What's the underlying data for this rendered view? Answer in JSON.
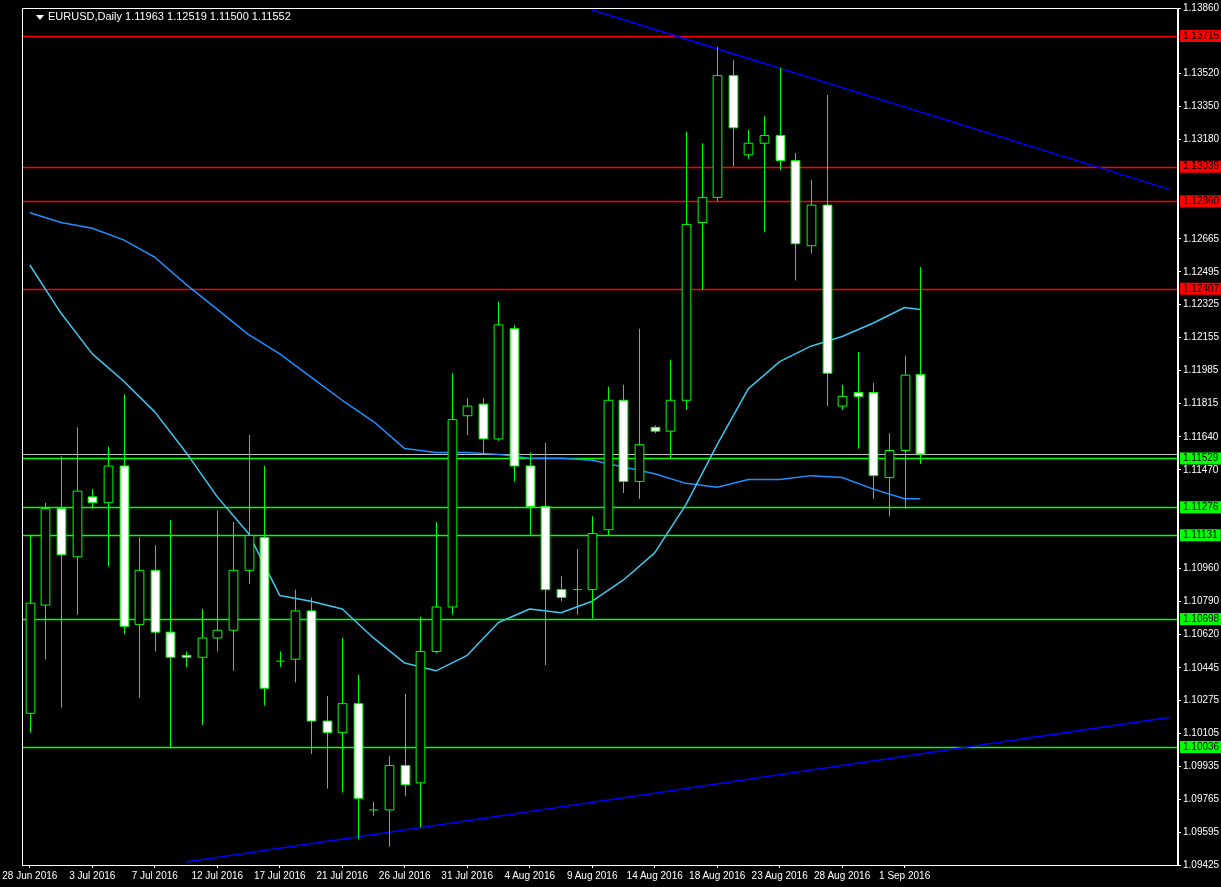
{
  "chart_data": {
    "type": "candlestick",
    "title": "EURUSD,Daily 1.11963 1.12519 1.11500 1.11552",
    "categories": [
      "28 Jun 2016",
      null,
      null,
      null,
      "3 Jul 2016",
      null,
      null,
      null,
      "7 Jul 2016",
      null,
      null,
      null,
      "12 Jul 2016",
      null,
      null,
      null,
      "17 Jul 2016",
      null,
      null,
      null,
      "21 Jul 2016",
      null,
      null,
      null,
      "26 Jul 2016",
      null,
      null,
      null,
      "31 Jul 2016",
      null,
      null,
      null,
      "4 Aug 2016",
      null,
      null,
      null,
      "9 Aug 2016",
      null,
      null,
      null,
      "14 Aug 2016",
      null,
      null,
      null,
      "18 Aug 2016",
      null,
      null,
      null,
      "23 Aug 2016",
      null,
      null,
      null,
      "28 Aug 2016",
      null,
      null,
      null,
      "1 Sep 2016",
      null,
      null,
      null,
      null,
      null,
      null,
      null,
      null,
      null,
      null,
      null,
      null,
      null,
      null,
      null,
      null,
      null
    ],
    "ohlc": [
      [
        1.1021,
        1.1113,
        1.1011,
        1.1078
      ],
      [
        1.1077,
        1.113,
        1.1049,
        1.1127
      ],
      [
        1.1127,
        1.1154,
        1.1024,
        1.1103
      ],
      [
        1.1102,
        1.1169,
        1.1072,
        1.1136
      ],
      [
        1.1133,
        1.1137,
        1.1127,
        1.113
      ],
      [
        1.113,
        1.1159,
        1.1097,
        1.1149
      ],
      [
        1.1149,
        1.1186,
        1.1062,
        1.1066
      ],
      [
        1.1067,
        1.1112,
        1.1029,
        1.1095
      ],
      [
        1.1095,
        1.1108,
        1.1053,
        1.1063
      ],
      [
        1.1063,
        1.1121,
        1.1003,
        1.105
      ],
      [
        1.1051,
        1.1053,
        1.1045,
        1.105
      ],
      [
        1.105,
        1.1075,
        1.1015,
        1.106
      ],
      [
        1.106,
        1.1126,
        1.1053,
        1.1064
      ],
      [
        1.1064,
        1.112,
        1.1043,
        1.1095
      ],
      [
        1.1095,
        1.1165,
        1.1088,
        1.1113
      ],
      [
        1.1112,
        1.1149,
        1.1025,
        1.1034
      ],
      [
        1.1048,
        1.1053,
        1.1045,
        1.1048
      ],
      [
        1.1049,
        1.1085,
        1.1037,
        1.1074
      ],
      [
        1.1074,
        1.1081,
        1.1,
        1.1017
      ],
      [
        1.1017,
        1.103,
        1.0982,
        1.1011
      ],
      [
        1.1011,
        1.106,
        1.098,
        1.1026
      ],
      [
        1.1026,
        1.1041,
        1.0956,
        1.0977
      ],
      [
        1.0971,
        1.0975,
        1.0968,
        1.0971
      ],
      [
        1.0971,
        1.0999,
        1.0952,
        1.0994
      ],
      [
        1.0994,
        1.1031,
        1.0978,
        1.0984
      ],
      [
        1.0985,
        1.1071,
        1.0962,
        1.1053
      ],
      [
        1.1053,
        1.112,
        1.1052,
        1.1076
      ],
      [
        1.1076,
        1.1197,
        1.1072,
        1.1173
      ],
      [
        1.1175,
        1.1184,
        1.1165,
        1.118
      ],
      [
        1.1181,
        1.1184,
        1.1155,
        1.1163
      ],
      [
        1.1163,
        1.1234,
        1.1162,
        1.1222
      ],
      [
        1.122,
        1.1222,
        1.1141,
        1.1149
      ],
      [
        1.1149,
        1.1156,
        1.1113,
        1.1128
      ],
      [
        1.1128,
        1.1161,
        1.1046,
        1.1085
      ],
      [
        1.1085,
        1.1092,
        1.1079,
        1.1081
      ],
      [
        1.1085,
        1.1106,
        1.1072,
        1.1085
      ],
      [
        1.1085,
        1.1123,
        1.107,
        1.1114
      ],
      [
        1.1116,
        1.119,
        1.1113,
        1.1183
      ],
      [
        1.1183,
        1.1191,
        1.1135,
        1.1141
      ],
      [
        1.1141,
        1.122,
        1.1132,
        1.116
      ],
      [
        1.1169,
        1.117,
        1.1166,
        1.1167
      ],
      [
        1.1167,
        1.1204,
        1.1153,
        1.1183
      ],
      [
        1.1183,
        1.1322,
        1.1178,
        1.1274
      ],
      [
        1.1275,
        1.1316,
        1.124,
        1.1288
      ],
      [
        1.1288,
        1.1366,
        1.1286,
        1.1351
      ],
      [
        1.1351,
        1.1359,
        1.1304,
        1.1324
      ],
      [
        1.131,
        1.1323,
        1.1308,
        1.1316
      ],
      [
        1.1316,
        1.133,
        1.127,
        1.132
      ],
      [
        1.132,
        1.1355,
        1.1302,
        1.1307
      ],
      [
        1.1307,
        1.1311,
        1.1245,
        1.1264
      ],
      [
        1.1263,
        1.1297,
        1.1259,
        1.1284
      ],
      [
        1.1284,
        1.1341,
        1.118,
        1.1197
      ],
      [
        1.118,
        1.1191,
        1.1178,
        1.1185
      ],
      [
        1.1187,
        1.1208,
        1.1158,
        1.1185
      ],
      [
        1.1187,
        1.1192,
        1.1132,
        1.1144
      ],
      [
        1.1143,
        1.1166,
        1.1123,
        1.1157
      ],
      [
        1.1157,
        1.1206,
        1.1127,
        1.1196
      ],
      [
        1.11963,
        1.12519,
        1.115,
        1.11552
      ],
      null,
      null,
      null,
      null,
      null,
      null,
      null,
      null,
      null,
      null,
      null,
      null,
      null,
      null,
      null,
      null
    ],
    "series": [
      {
        "type": "line",
        "color": "#3cc8f0",
        "values": [
          1.1253,
          null,
          1.1228,
          null,
          1.1207,
          null,
          1.1193,
          null,
          1.1177,
          null,
          1.1156,
          null,
          1.1133,
          null,
          1.1114,
          null,
          1.1082,
          null,
          1.1079,
          null,
          1.1075,
          null,
          1.106,
          null,
          1.1047,
          null,
          1.1043,
          null,
          1.1051,
          null,
          1.1068,
          null,
          1.1075,
          null,
          1.1073,
          null,
          1.1079,
          null,
          1.109,
          null,
          1.1104,
          null,
          1.1129,
          null,
          1.116,
          null,
          1.1189,
          null,
          1.1203,
          null,
          1.1211,
          null,
          1.1216,
          null,
          1.1223,
          null,
          1.1231,
          1.123,
          null,
          null,
          null,
          null,
          null,
          null,
          null,
          null,
          null,
          null,
          null,
          null,
          null,
          null,
          null,
          null
        ]
      },
      {
        "type": "line",
        "color": "#1e90ff",
        "values": [
          1.128,
          null,
          1.1275,
          null,
          1.1272,
          null,
          1.1266,
          null,
          1.1257,
          null,
          1.1243,
          null,
          1.123,
          null,
          1.1217,
          null,
          1.1207,
          null,
          1.1195,
          null,
          1.1183,
          null,
          1.1172,
          null,
          1.1158,
          null,
          1.1156,
          null,
          1.1156,
          null,
          1.1155,
          null,
          1.1153,
          null,
          1.1153,
          null,
          1.1152,
          null,
          null,
          null,
          1.1145,
          null,
          1.114,
          null,
          1.1138,
          null,
          1.1142,
          null,
          1.1142,
          null,
          1.1144,
          null,
          1.1143,
          null,
          1.1137,
          null,
          1.1132,
          1.1132,
          null,
          null,
          null,
          null,
          null,
          null,
          null,
          null,
          null,
          null,
          null,
          null,
          null,
          null,
          null,
          null
        ]
      },
      {
        "type": "line",
        "color": "#0000ff",
        "values": [
          null,
          null,
          null,
          null,
          null,
          null,
          null,
          null,
          null,
          null,
          null,
          null,
          null,
          null,
          null,
          null,
          null,
          null,
          null,
          null,
          null,
          null,
          null,
          null,
          null,
          null,
          null,
          null,
          null,
          null,
          null,
          null,
          null,
          null,
          null,
          null,
          1.1385,
          null,
          null,
          null,
          null,
          null,
          null,
          null,
          null,
          null,
          null,
          null,
          null,
          null,
          null,
          null,
          null,
          null,
          null,
          null,
          null,
          null,
          null,
          null,
          null,
          null,
          null,
          null,
          null,
          null,
          null,
          null,
          null,
          null,
          null,
          null,
          null,
          1.1292
        ]
      },
      {
        "type": "line",
        "color": "#0000ff",
        "values": [
          null,
          null,
          null,
          null,
          null,
          null,
          null,
          null,
          null,
          null,
          1.0944,
          null,
          null,
          null,
          null,
          null,
          null,
          null,
          null,
          null,
          null,
          null,
          null,
          null,
          null,
          null,
          null,
          null,
          null,
          null,
          null,
          null,
          null,
          null,
          null,
          null,
          null,
          null,
          null,
          null,
          null,
          null,
          null,
          null,
          null,
          null,
          null,
          null,
          null,
          null,
          null,
          null,
          null,
          null,
          null,
          null,
          null,
          null,
          null,
          null,
          null,
          null,
          null,
          null,
          null,
          null,
          null,
          null,
          null,
          null,
          null,
          null,
          null,
          1.1019
        ]
      }
    ],
    "ylim": [
      1.09425,
      1.1386
    ],
    "yticks": [
      {
        "value": 1.09425,
        "label": "1.09425"
      },
      {
        "value": 1.09595,
        "label": "1.09595"
      },
      {
        "value": 1.09765,
        "label": "1.09765"
      },
      {
        "value": 1.09935,
        "label": "1.09935"
      },
      {
        "value": 1.10105,
        "label": "1.10105"
      },
      {
        "value": 1.10275,
        "label": "1.10275"
      },
      {
        "value": 1.10445,
        "label": "1.10445"
      },
      {
        "value": 1.1062,
        "label": "1.10620"
      },
      {
        "value": 1.1079,
        "label": "1.10790"
      },
      {
        "value": 1.1096,
        "label": "1.10960"
      },
      {
        "value": 1.1147,
        "label": "1.11470"
      },
      {
        "value": 1.1164,
        "label": "1.11640"
      },
      {
        "value": 1.11815,
        "label": "1.11815"
      },
      {
        "value": 1.11985,
        "label": "1.11985"
      },
      {
        "value": 1.12155,
        "label": "1.12155"
      },
      {
        "value": 1.12325,
        "label": "1.12325"
      },
      {
        "value": 1.12495,
        "label": "1.12495"
      },
      {
        "value": 1.12665,
        "label": "1.12665"
      },
      {
        "value": 1.1318,
        "label": "1.13180"
      },
      {
        "value": 1.1335,
        "label": "1.13350"
      },
      {
        "value": 1.1352,
        "label": "1.13520"
      },
      {
        "value": 1.1386,
        "label": "1.13860"
      }
    ],
    "ref_lines": [
      {
        "axis": "y",
        "value": 1.13715,
        "label": "1.13715",
        "color": "#ff0000"
      },
      {
        "axis": "y",
        "value": 1.13039,
        "label": "1.13039",
        "color": "#ff0000"
      },
      {
        "axis": "y",
        "value": 1.1286,
        "label": "1.12860",
        "color": "#ff0000"
      },
      {
        "axis": "y",
        "value": 1.12407,
        "label": "1.12407",
        "color": "#ff0000"
      },
      {
        "axis": "y",
        "value": 1.11552,
        "color": "#c0c0c0"
      },
      {
        "axis": "y",
        "value": 1.11529,
        "label": "1.11529",
        "color": "#00ff00"
      },
      {
        "axis": "y",
        "value": 1.11276,
        "label": "1.11276",
        "color": "#00ff00"
      },
      {
        "axis": "y",
        "value": 1.11131,
        "label": "1.11131",
        "color": "#00ff00"
      },
      {
        "axis": "y",
        "value": 1.10698,
        "label": "1.10698",
        "color": "#00ff00"
      },
      {
        "axis": "y",
        "value": 1.10036,
        "label": "1.10036",
        "color": "#00ff00"
      }
    ]
  }
}
